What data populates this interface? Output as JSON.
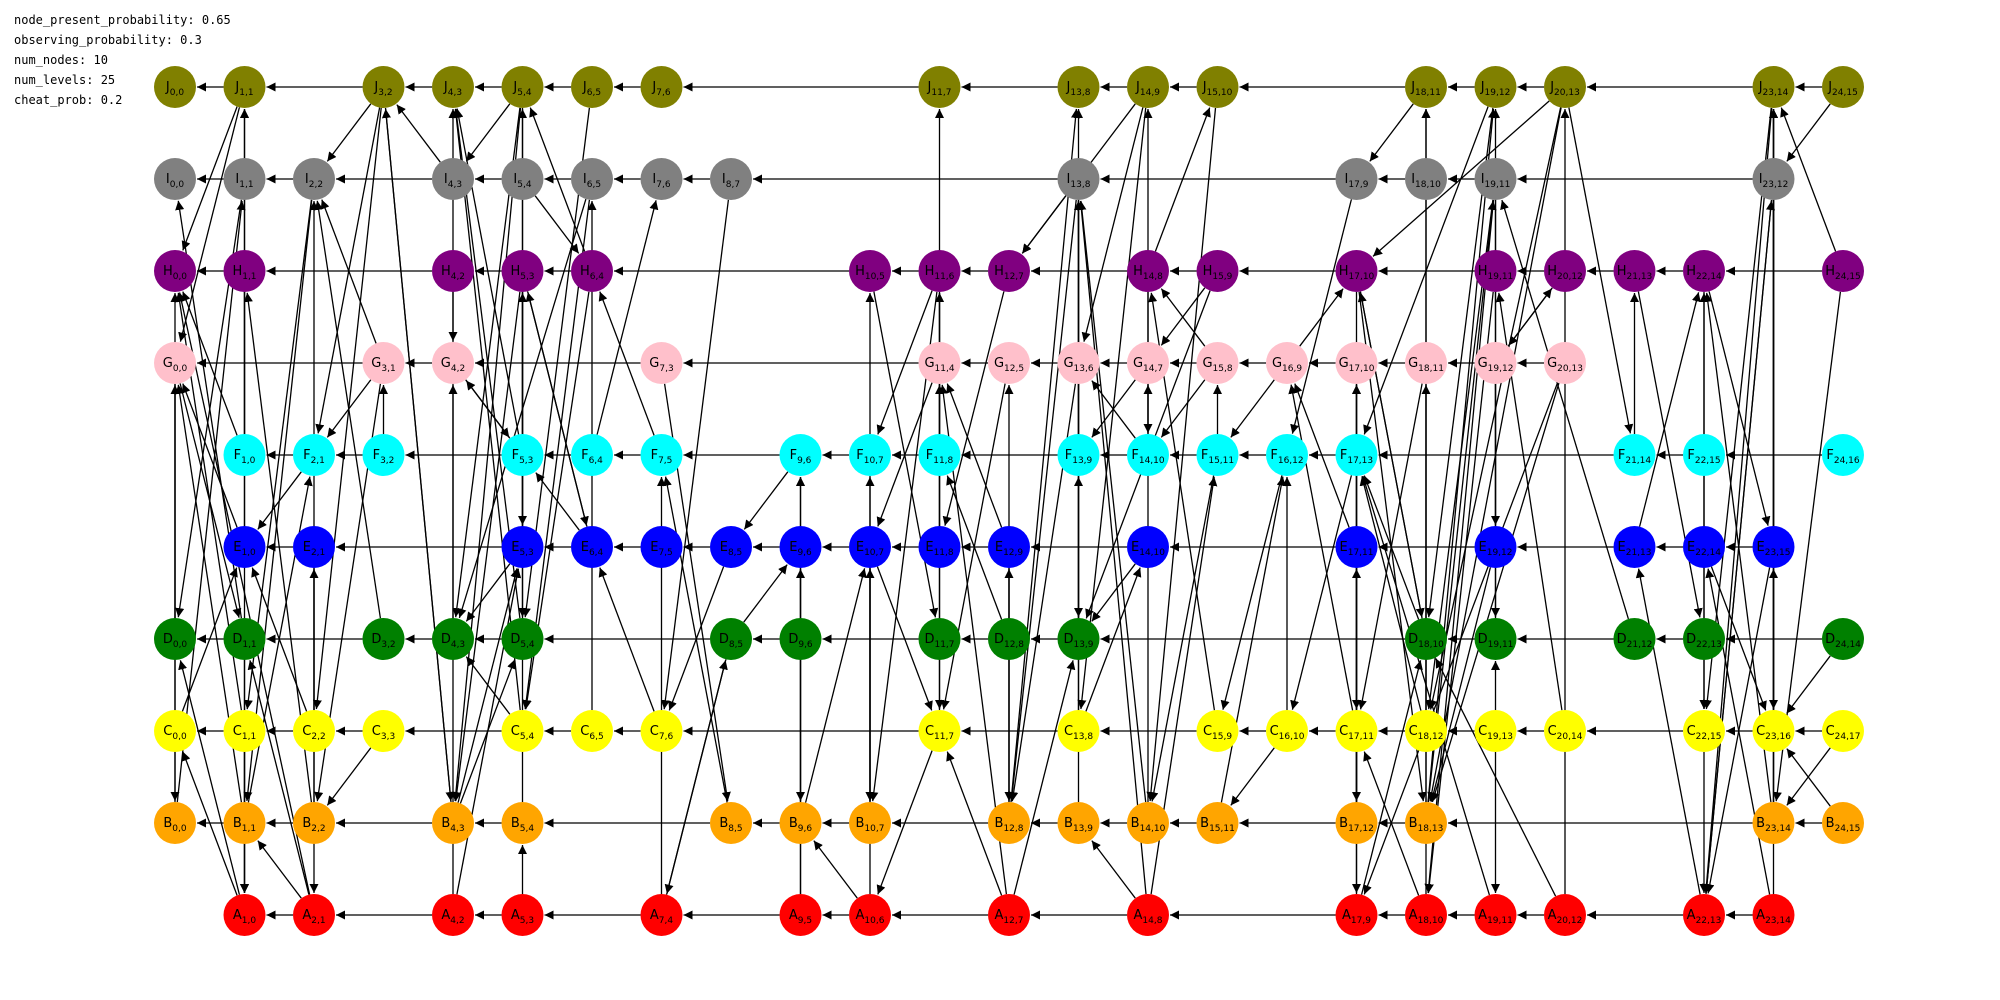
{
  "params": [
    "node_present_probability: 0.65",
    "observing_probability: 0.3",
    "num_nodes: 10",
    "num_levels: 25",
    "cheat_prob: 0.2"
  ],
  "colors": {
    "A": "#ff0000",
    "B": "#ffa500",
    "C": "#ffff00",
    "D": "#008000",
    "E": "#0000ff",
    "F": "#00ffff",
    "G": "#ffc0cb",
    "H": "#800080",
    "I": "#808080",
    "J": "#808000"
  },
  "rows": [
    "J",
    "I",
    "H",
    "G",
    "F",
    "E",
    "D",
    "C",
    "B",
    "A"
  ],
  "nodes": [
    "J,0,0",
    "J,1,1",
    "J,3,2",
    "J,4,3",
    "J,5,4",
    "J,6,5",
    "J,7,6",
    "J,11,7",
    "J,13,8",
    "J,14,9",
    "J,15,10",
    "J,18,11",
    "J,19,12",
    "J,20,13",
    "J,23,14",
    "J,24,15",
    "I,0,0",
    "I,1,1",
    "I,2,2",
    "I,4,3",
    "I,5,4",
    "I,6,5",
    "I,7,6",
    "I,8,7",
    "I,13,8",
    "I,17,9",
    "I,18,10",
    "I,19,11",
    "I,23,12",
    "H,0,0",
    "H,1,1",
    "H,4,2",
    "H,5,3",
    "H,6,4",
    "H,10,5",
    "H,11,6",
    "H,12,7",
    "H,14,8",
    "H,15,9",
    "H,17,10",
    "H,19,11",
    "H,20,12",
    "H,21,13",
    "H,22,14",
    "H,24,15",
    "G,0,0",
    "G,3,1",
    "G,4,2",
    "G,7,3",
    "G,11,4",
    "G,12,5",
    "G,13,6",
    "G,14,7",
    "G,15,8",
    "G,16,9",
    "G,17,10",
    "G,18,11",
    "G,19,12",
    "G,20,13",
    "F,1,0",
    "F,2,1",
    "F,3,2",
    "F,5,3",
    "F,6,4",
    "F,7,5",
    "F,9,6",
    "F,10,7",
    "F,11,8",
    "F,13,9",
    "F,14,10",
    "F,15,11",
    "F,16,12",
    "F,17,13",
    "F,21,14",
    "F,22,15",
    "F,24,16",
    "E,1,0",
    "E,2,1",
    "E,5,3",
    "E,6,4",
    "E,7,5",
    "E,8,5",
    "E,9,6",
    "E,10,7",
    "E,11,8",
    "E,12,9",
    "E,14,10",
    "E,17,11",
    "E,19,12",
    "E,21,13",
    "E,22,14",
    "E,23,15",
    "D,0,0",
    "D,1,1",
    "D,3,2",
    "D,4,3",
    "D,5,4",
    "D,8,5",
    "D,9,6",
    "D,11,7",
    "D,12,8",
    "D,13,9",
    "D,18,10",
    "D,19,11",
    "D,21,12",
    "D,22,13",
    "D,24,14",
    "C,0,0",
    "C,1,1",
    "C,2,2",
    "C,3,3",
    "C,5,4",
    "C,6,5",
    "C,7,6",
    "C,11,7",
    "C,13,8",
    "C,15,9",
    "C,16,10",
    "C,17,11",
    "C,18,12",
    "C,19,13",
    "C,20,14",
    "C,22,15",
    "C,23,16",
    "C,24,17",
    "B,0,0",
    "B,1,1",
    "B,2,2",
    "B,4,3",
    "B,5,4",
    "B,8,5",
    "B,9,6",
    "B,10,7",
    "B,12,8",
    "B,13,9",
    "B,14,10",
    "B,15,11",
    "B,17,12",
    "B,18,13",
    "B,23,14",
    "B,24,15",
    "A,1,0",
    "A,2,1",
    "A,4,2",
    "A,5,3",
    "A,7,4",
    "A,9,5",
    "A,10,6",
    "A,12,7",
    "A,14,8",
    "A,17,9",
    "A,18,10",
    "A,19,11",
    "A,20,12",
    "A,22,13",
    "A,23,14"
  ],
  "cross_edges": [
    [
      "J,1,1",
      "H,0,0"
    ],
    [
      "J,1,1",
      "G,0,0"
    ],
    [
      "J,3,2",
      "I,2,2"
    ],
    [
      "J,3,2",
      "F,2,1"
    ],
    [
      "J,3,2",
      "C,2,2"
    ],
    [
      "J,3,2",
      "B,4,3"
    ],
    [
      "I,4,3",
      "J,3,2"
    ],
    [
      "J,5,4",
      "I,4,3"
    ],
    [
      "J,5,4",
      "E,5,3"
    ],
    [
      "J,5,4",
      "D,4,3"
    ],
    [
      "J,5,4",
      "B,4,3"
    ],
    [
      "J,6,5",
      "D,5,4"
    ],
    [
      "J,14,9",
      "H,12,7"
    ],
    [
      "J,14,9",
      "G,13,6"
    ],
    [
      "J,14,9",
      "C,13,8"
    ],
    [
      "J,15,10",
      "B,14,10"
    ],
    [
      "J,18,11",
      "I,17,9"
    ],
    [
      "J,19,12",
      "F,17,13"
    ],
    [
      "J,19,12",
      "D,18,10"
    ],
    [
      "J,20,13",
      "H,17,10"
    ],
    [
      "J,20,13",
      "F,21,14"
    ],
    [
      "J,20,13",
      "C,18,12"
    ],
    [
      "J,20,13",
      "B,18,13"
    ],
    [
      "J,23,14",
      "A,22,13"
    ],
    [
      "J,23,14",
      "C,22,15"
    ],
    [
      "J,24,15",
      "I,23,12"
    ],
    [
      "I,1,1",
      "D,0,0"
    ],
    [
      "I,2,2",
      "B,1,1"
    ],
    [
      "I,2,2",
      "C,1,1"
    ],
    [
      "I,5,4",
      "H,6,4"
    ],
    [
      "I,6,5",
      "D,4,3"
    ],
    [
      "I,6,5",
      "C,5,4"
    ],
    [
      "I,8,7",
      "C,7,6"
    ],
    [
      "I,13,8",
      "H,12,7"
    ],
    [
      "I,13,8",
      "B,12,8"
    ],
    [
      "I,13,8",
      "D,13,9"
    ],
    [
      "I,17,9",
      "F,16,12"
    ],
    [
      "I,19,11",
      "C,18,12"
    ],
    [
      "I,19,11",
      "D,19,11"
    ],
    [
      "I,19,11",
      "A,18,10"
    ],
    [
      "I,23,12",
      "A,22,13"
    ],
    [
      "I,23,12",
      "C,23,16"
    ],
    [
      "H,1,1",
      "A,1,0"
    ],
    [
      "H,4,2",
      "G,4,2"
    ],
    [
      "H,5,3",
      "D,5,4"
    ],
    [
      "H,5,3",
      "E,6,4"
    ],
    [
      "H,5,3",
      "B,4,3"
    ],
    [
      "H,6,4",
      "J,5,4"
    ],
    [
      "H,6,4",
      "C,5,4"
    ],
    [
      "H,10,5",
      "D,11,7"
    ],
    [
      "H,11,6",
      "F,10,7"
    ],
    [
      "H,11,6",
      "B,10,7"
    ],
    [
      "H,12,7",
      "E,11,8"
    ],
    [
      "H,14,8",
      "J,15,10"
    ],
    [
      "H,14,8",
      "F,14,10"
    ],
    [
      "H,15,9",
      "G,14,7"
    ],
    [
      "H,15,9",
      "D,13,9"
    ],
    [
      "H,17,10",
      "C,17,11"
    ],
    [
      "H,17,10",
      "B,18,13"
    ],
    [
      "H,17,10",
      "D,18,10"
    ],
    [
      "H,19,11",
      "A,18,10"
    ],
    [
      "H,20,12",
      "G,19,12"
    ],
    [
      "H,21,13",
      "D,22,13"
    ],
    [
      "H,22,14",
      "E,23,15"
    ],
    [
      "H,22,14",
      "C,22,15"
    ],
    [
      "H,24,15",
      "J,23,14"
    ],
    [
      "H,24,15",
      "B,23,14"
    ],
    [
      "G,0,0",
      "D,1,1"
    ],
    [
      "G,0,0",
      "B,0,0"
    ],
    [
      "G,3,1",
      "I,2,2"
    ],
    [
      "G,3,1",
      "F,2,1"
    ],
    [
      "G,3,1",
      "B,2,2"
    ],
    [
      "G,4,2",
      "F,5,3"
    ],
    [
      "G,7,3",
      "B,8,5"
    ],
    [
      "G,11,4",
      "E,10,7"
    ],
    [
      "G,12,5",
      "C,11,7"
    ],
    [
      "G,13,6",
      "B,12,8"
    ],
    [
      "G,14,7",
      "F,13,9"
    ],
    [
      "G,15,8",
      "H,14,8"
    ],
    [
      "G,15,8",
      "F,14,10"
    ],
    [
      "G,16,9",
      "H,17,10"
    ],
    [
      "G,16,9",
      "F,15,11"
    ],
    [
      "G,17,10",
      "B,17,12"
    ],
    [
      "G,18,11",
      "C,17,11"
    ],
    [
      "G,19,12",
      "H,20,12"
    ],
    [
      "G,19,12",
      "E,19,12"
    ],
    [
      "G,20,13",
      "B,18,13"
    ],
    [
      "G,20,13",
      "A,17,9"
    ],
    [
      "F,1,0",
      "H,0,0"
    ],
    [
      "F,1,0",
      "J,1,1"
    ],
    [
      "F,2,1",
      "E,1,0"
    ],
    [
      "F,3,2",
      "G,3,1"
    ],
    [
      "F,5,3",
      "J,4,3"
    ],
    [
      "F,5,3",
      "G,4,2"
    ],
    [
      "F,6,4",
      "I,7,6"
    ],
    [
      "F,7,5",
      "H,6,4"
    ],
    [
      "F,9,6",
      "E,8,5"
    ],
    [
      "F,10,7",
      "H,10,5"
    ],
    [
      "F,10,7",
      "B,10,7"
    ],
    [
      "F,11,8",
      "H,11,6"
    ],
    [
      "F,13,9",
      "J,13,8"
    ],
    [
      "F,14,10",
      "G,13,6"
    ],
    [
      "F,14,10",
      "J,14,9"
    ],
    [
      "F,15,11",
      "G,15,8"
    ],
    [
      "F,15,11",
      "B,14,10"
    ],
    [
      "F,16,12",
      "C,15,9"
    ],
    [
      "F,17,13",
      "C,16,10"
    ],
    [
      "F,21,14",
      "H,21,13"
    ],
    [
      "F,22,15",
      "D,23,15"
    ],
    [
      "F,24,16",
      "D,23,15"
    ],
    [
      "E,1,0",
      "G,0,0"
    ],
    [
      "E,1,0",
      "J,1,1"
    ],
    [
      "E,2,1",
      "A,2,1"
    ],
    [
      "E,5,3",
      "J,5,4"
    ],
    [
      "E,5,3",
      "D,4,3"
    ],
    [
      "E,6,4",
      "H,5,3"
    ],
    [
      "E,6,4",
      "F,5,3"
    ],
    [
      "E,8,5",
      "C,7,6"
    ],
    [
      "E,9,6",
      "F,9,6"
    ],
    [
      "E,9,6",
      "B,9,6"
    ],
    [
      "E,10,7",
      "B,10,7"
    ],
    [
      "E,10,7",
      "C,11,7"
    ],
    [
      "E,11,8",
      "H,11,6"
    ],
    [
      "E,12,9",
      "G,11,4"
    ],
    [
      "E,12,9",
      "B,12,8"
    ],
    [
      "E,14,10",
      "D,13,9"
    ],
    [
      "E,17,11",
      "G,16,9"
    ],
    [
      "E,19,12",
      "B,18,13"
    ],
    [
      "E,21,13",
      "H,22,14"
    ],
    [
      "E,22,14",
      "C,23,16"
    ],
    [
      "E,23,15",
      "J,23,14"
    ],
    [
      "E,23,15",
      "A,22,13"
    ],
    [
      "D,0,0",
      "H,0,0"
    ],
    [
      "D,1,1",
      "I,0,0"
    ],
    [
      "D,1,1",
      "A,1,0"
    ],
    [
      "D,3,2",
      "I,2,2"
    ],
    [
      "D,4,3",
      "G,4,2"
    ],
    [
      "D,5,4",
      "J,4,3"
    ],
    [
      "D,8,5",
      "A,7,4"
    ],
    [
      "D,8,5",
      "E,9,6"
    ],
    [
      "D,11,7",
      "G,11,4"
    ],
    [
      "D,11,7",
      "C,11,7"
    ],
    [
      "D,12,8",
      "F,11,8"
    ],
    [
      "D,13,9",
      "I,13,8"
    ],
    [
      "D,18,10",
      "F,17,13"
    ],
    [
      "D,18,10",
      "H,17,10"
    ],
    [
      "D,19,11",
      "J,19,12"
    ],
    [
      "D,21,12",
      "I,19,11"
    ],
    [
      "D,22,13",
      "H,22,14"
    ],
    [
      "D,22,13",
      "C,22,15"
    ],
    [
      "D,24,14",
      "C,23,16"
    ],
    [
      "C,0,0",
      "E,1,0"
    ],
    [
      "C,1,1",
      "H,0,0"
    ],
    [
      "C,1,1",
      "A,1,0"
    ],
    [
      "C,2,2",
      "E,1,0"
    ],
    [
      "C,2,2",
      "I,2,2"
    ],
    [
      "C,3,3",
      "B,2,2"
    ],
    [
      "C,5,4",
      "J,4,3"
    ],
    [
      "C,5,4",
      "D,4,3"
    ],
    [
      "C,6,5",
      "I,6,5"
    ],
    [
      "C,7,6",
      "E,6,4"
    ],
    [
      "C,11,7",
      "A,10,6"
    ],
    [
      "C,11,7",
      "J,11,7"
    ],
    [
      "C,13,8",
      "I,13,8"
    ],
    [
      "C,13,8",
      "E,14,10"
    ],
    [
      "C,15,9",
      "H,14,8"
    ],
    [
      "C,16,10",
      "F,16,12"
    ],
    [
      "C,16,10",
      "B,15,11"
    ],
    [
      "C,17,11",
      "G,16,9"
    ],
    [
      "C,17,11",
      "A,17,9"
    ],
    [
      "C,18,12",
      "J,18,11"
    ],
    [
      "C,18,12",
      "F,17,13"
    ],
    [
      "C,19,13",
      "D,19,11"
    ],
    [
      "C,19,13",
      "A,19,11"
    ],
    [
      "C,20,14",
      "H,19,11"
    ],
    [
      "C,22,15",
      "A,22,13"
    ],
    [
      "C,23,16",
      "J,23,14"
    ],
    [
      "C,24,17",
      "B,23,14"
    ],
    [
      "B,0,0",
      "G,0,0"
    ],
    [
      "B,0,0",
      "I,1,1"
    ],
    [
      "B,1,1",
      "G,0,0"
    ],
    [
      "B,1,1",
      "F,2,1"
    ],
    [
      "B,2,2",
      "E,2,1"
    ],
    [
      "B,2,2",
      "H,1,1"
    ],
    [
      "B,4,3",
      "E,5,3"
    ],
    [
      "B,4,3",
      "D,5,4"
    ],
    [
      "B,4,3",
      "J,3,2"
    ],
    [
      "B,5,4",
      "H,5,3"
    ],
    [
      "B,8,5",
      "F,7,5"
    ],
    [
      "B,9,6",
      "E,10,7"
    ],
    [
      "B,10,7",
      "F,10,7"
    ],
    [
      "B,12,8",
      "G,12,5"
    ],
    [
      "B,12,8",
      "J,13,8"
    ],
    [
      "B,12,8",
      "E,12,9"
    ],
    [
      "B,13,9",
      "F,13,9"
    ],
    [
      "B,14,10",
      "I,13,8"
    ],
    [
      "B,14,10",
      "G,14,7"
    ],
    [
      "B,15,11",
      "F,16,12"
    ],
    [
      "B,17,12",
      "G,17,10"
    ],
    [
      "B,17,12",
      "E,17,11"
    ],
    [
      "B,18,13",
      "J,19,12"
    ],
    [
      "B,18,13",
      "I,19,11"
    ],
    [
      "B,18,13",
      "G,18,11"
    ],
    [
      "B,23,14",
      "J,23,14"
    ],
    [
      "B,23,14",
      "E,23,15"
    ],
    [
      "B,23,14",
      "H,22,14"
    ],
    [
      "B,24,15",
      "C,23,16"
    ],
    [
      "A,1,0",
      "D,0,0"
    ],
    [
      "A,1,0",
      "C,0,0"
    ],
    [
      "A,2,1",
      "B,1,1"
    ],
    [
      "A,2,1",
      "H,0,0"
    ],
    [
      "A,2,1",
      "D,1,1"
    ],
    [
      "A,4,2",
      "J,4,3"
    ],
    [
      "A,4,2",
      "E,5,3"
    ],
    [
      "A,5,3",
      "B,5,4"
    ],
    [
      "A,7,4",
      "F,7,5"
    ],
    [
      "A,7,4",
      "D,8,5"
    ],
    [
      "A,9,5",
      "E,9,6"
    ],
    [
      "A,9,5",
      "F,9,6"
    ],
    [
      "A,10,6",
      "B,9,6"
    ],
    [
      "A,10,6",
      "E,10,7"
    ],
    [
      "A,12,7",
      "C,11,7"
    ],
    [
      "A,12,7",
      "G,11,4"
    ],
    [
      "A,12,7",
      "D,13,9"
    ],
    [
      "A,14,8",
      "B,13,9"
    ],
    [
      "A,14,8",
      "F,15,11"
    ],
    [
      "A,14,8",
      "I,13,8"
    ],
    [
      "A,17,9",
      "G,17,10"
    ],
    [
      "A,17,9",
      "D,18,10"
    ],
    [
      "A,18,10",
      "C,17,11"
    ],
    [
      "A,18,10",
      "J,18,11"
    ],
    [
      "A,19,11",
      "F,17,13"
    ],
    [
      "A,20,12",
      "D,18,10"
    ],
    [
      "A,20,12",
      "J,20,13"
    ],
    [
      "A,22,13",
      "E,21,13"
    ],
    [
      "A,22,13",
      "I,23,12"
    ],
    [
      "A,23,14",
      "J,23,14"
    ],
    [
      "A,23,14",
      "E,22,14"
    ]
  ]
}
